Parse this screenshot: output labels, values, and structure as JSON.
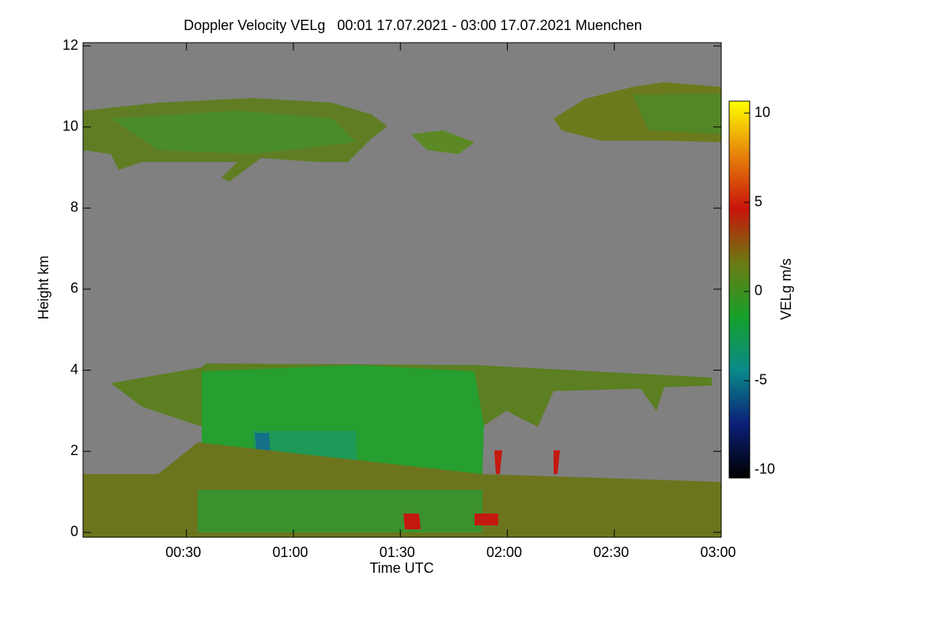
{
  "chart_data": {
    "type": "heatmap",
    "title": "Doppler Velocity VELg   00:01 17.07.2021 - 03:00 17.07.2021 Muenchen",
    "x_label": "Time UTC",
    "y_label": "Height km",
    "colorbar_label": "VELg m/s",
    "xlim": [
      1,
      180
    ],
    "xticks": [
      {
        "value": 30,
        "label": "00:30"
      },
      {
        "value": 60,
        "label": "01:00"
      },
      {
        "value": 90,
        "label": "01:30"
      },
      {
        "value": 120,
        "label": "02:00"
      },
      {
        "value": 150,
        "label": "02:30"
      },
      {
        "value": 180,
        "label": "03:00"
      }
    ],
    "ylim": [
      -0.12,
      12.08
    ],
    "yticks": [
      0,
      2,
      4,
      6,
      8,
      10,
      12
    ],
    "clim": [
      -10.45,
      10.67
    ],
    "cticks": [
      -10,
      -5,
      0,
      5,
      10
    ],
    "colormap": [
      "#000000",
      "#0b1f78",
      "#0a8a8a",
      "#16a02a",
      "#6b7a12",
      "#c8140a",
      "#e6820a",
      "#ffff00"
    ],
    "background_color": "#808080"
  }
}
